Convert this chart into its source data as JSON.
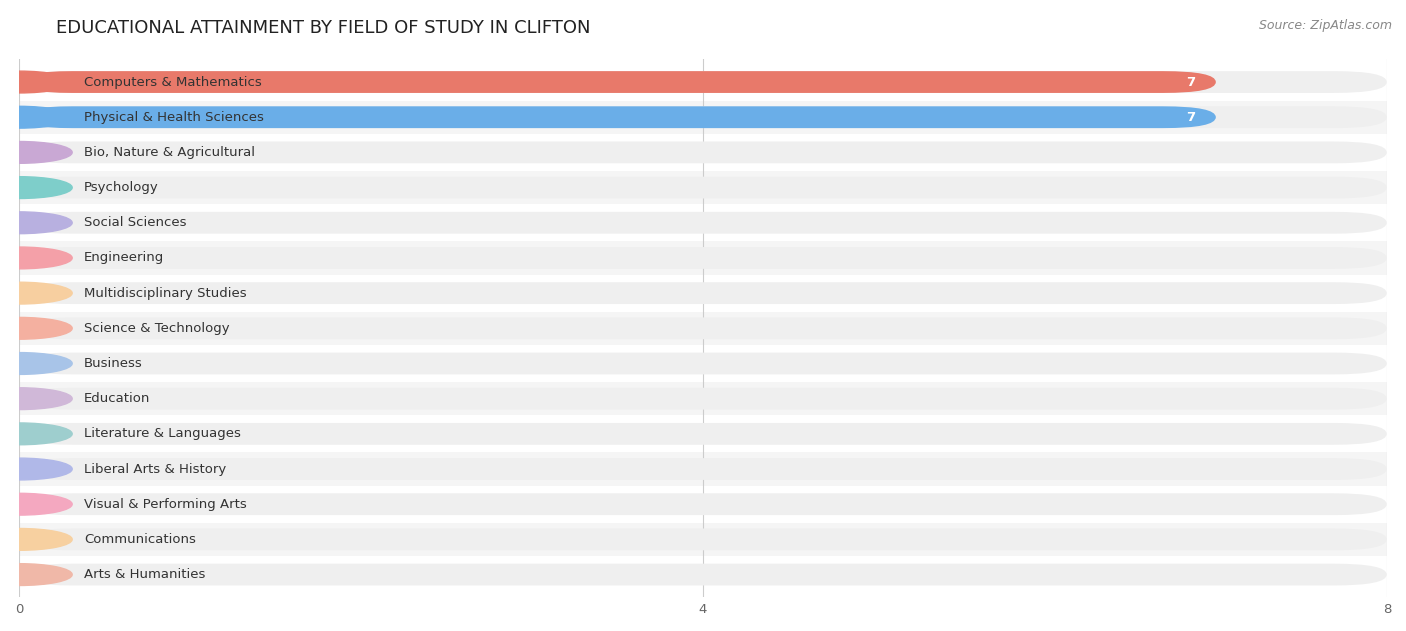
{
  "title": "EDUCATIONAL ATTAINMENT BY FIELD OF STUDY IN CLIFTON",
  "source": "Source: ZipAtlas.com",
  "categories": [
    "Computers & Mathematics",
    "Physical & Health Sciences",
    "Bio, Nature & Agricultural",
    "Psychology",
    "Social Sciences",
    "Engineering",
    "Multidisciplinary Studies",
    "Science & Technology",
    "Business",
    "Education",
    "Literature & Languages",
    "Liberal Arts & History",
    "Visual & Performing Arts",
    "Communications",
    "Arts & Humanities"
  ],
  "values": [
    7,
    7,
    0,
    0,
    0,
    0,
    0,
    0,
    0,
    0,
    0,
    0,
    0,
    0,
    0
  ],
  "bar_colors": [
    "#E8796A",
    "#6AAEE8",
    "#C9A8D4",
    "#7ECECA",
    "#B8B0E0",
    "#F4A0A8",
    "#F7CFA0",
    "#F4B0A0",
    "#A8C4E8",
    "#D0B8D8",
    "#9ECECE",
    "#B0B8E8",
    "#F4A8C0",
    "#F7D0A0",
    "#F0B8A8"
  ],
  "background_bar_color": "#EFEFEF",
  "xlim": [
    0,
    8
  ],
  "xticks": [
    0,
    4,
    8
  ],
  "bg_color": "#FFFFFF",
  "title_fontsize": 13,
  "label_fontsize": 9.5,
  "value_fontsize": 9.5,
  "source_fontsize": 9
}
